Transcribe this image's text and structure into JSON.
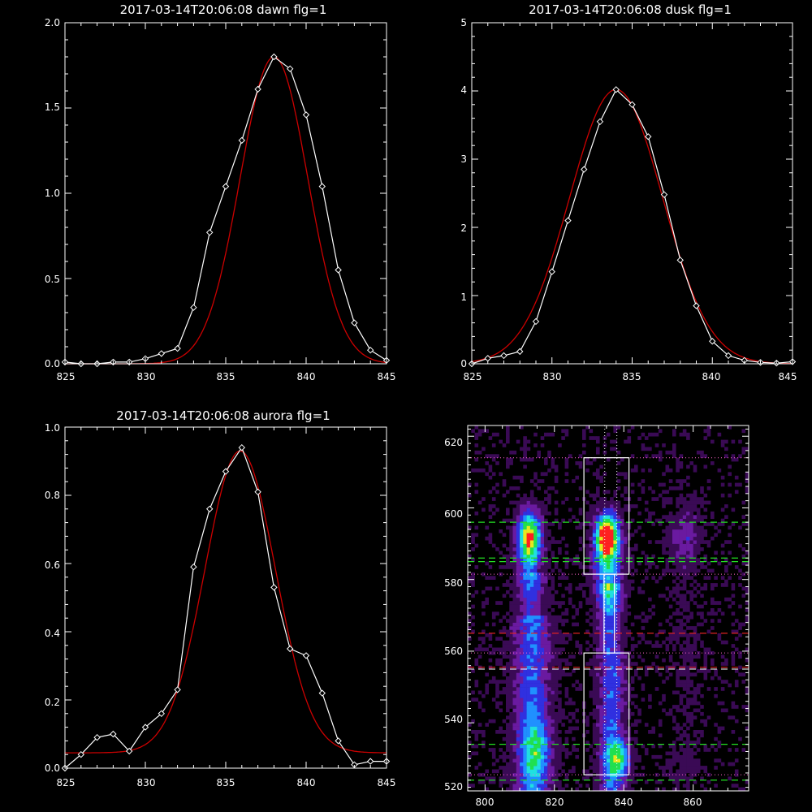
{
  "chart_data": [
    {
      "type": "line",
      "title": "2017-03-14T20:06:08 dawn flg=1",
      "xlim": [
        825,
        845
      ],
      "ylim": [
        0,
        2.0
      ],
      "xticks": [
        "825",
        "830",
        "835",
        "840",
        "845"
      ],
      "yticks": [
        "0.0",
        "0.5",
        "1.0",
        "1.5",
        "2.0"
      ],
      "x": [
        825,
        826,
        827,
        828,
        829,
        830,
        831,
        832,
        833,
        834,
        835,
        836,
        837,
        838,
        839,
        840,
        841,
        842,
        843,
        844,
        845
      ],
      "series": [
        {
          "values": [
            0.01,
            0.0,
            -0.01,
            0.01,
            0.01,
            0.03,
            0.06,
            0.09,
            0.33,
            0.77,
            1.04,
            1.31,
            1.61,
            1.8,
            1.73,
            1.46,
            1.04,
            0.55,
            0.24,
            0.08,
            0.02
          ],
          "color": "#ffffff",
          "marker": "diamond"
        },
        {
          "fit": "gaussian",
          "amp": 1.8,
          "center": 838.0,
          "sigma": 2.1,
          "base": 0.0,
          "color": "#cc0000"
        }
      ]
    },
    {
      "type": "line",
      "title": "2017-03-14T20:06:08 dusk flg=1",
      "xlim": [
        825,
        845
      ],
      "ylim": [
        0,
        5
      ],
      "xticks": [
        "825",
        "830",
        "835",
        "840",
        "845"
      ],
      "yticks": [
        "0",
        "1",
        "2",
        "3",
        "4",
        "5"
      ],
      "x": [
        825,
        826,
        827,
        828,
        829,
        830,
        831,
        832,
        833,
        834,
        835,
        836,
        837,
        838,
        839,
        840,
        841,
        842,
        843,
        844,
        845
      ],
      "series": [
        {
          "values": [
            0.0,
            0.08,
            0.12,
            0.18,
            0.62,
            1.35,
            2.1,
            2.85,
            3.55,
            4.02,
            3.8,
            3.33,
            2.48,
            1.52,
            0.85,
            0.33,
            0.12,
            0.05,
            0.02,
            0.01,
            0.03
          ],
          "color": "#ffffff",
          "marker": "diamond"
        },
        {
          "fit": "gaussian",
          "amp": 4.02,
          "center": 834.0,
          "sigma": 2.9,
          "base": 0.0,
          "color": "#cc0000"
        }
      ]
    },
    {
      "type": "line",
      "title": "2017-03-14T20:06:08 aurora flg=1",
      "xlim": [
        825,
        845
      ],
      "ylim": [
        0,
        1.0
      ],
      "xticks": [
        "825",
        "830",
        "835",
        "840",
        "845"
      ],
      "yticks": [
        "0.0",
        "0.2",
        "0.4",
        "0.6",
        "0.8",
        "1.0"
      ],
      "x": [
        825,
        826,
        827,
        828,
        829,
        830,
        831,
        832,
        833,
        834,
        835,
        836,
        837,
        838,
        839,
        840,
        841,
        842,
        843,
        844,
        845
      ],
      "series": [
        {
          "values": [
            0.0,
            0.04,
            0.09,
            0.1,
            0.05,
            0.12,
            0.16,
            0.23,
            0.59,
            0.76,
            0.87,
            0.94,
            0.81,
            0.53,
            0.35,
            0.33,
            0.22,
            0.08,
            0.01,
            0.02,
            0.02
          ],
          "color": "#ffffff",
          "marker": "diamond"
        },
        {
          "fit": "gaussian",
          "amp": 0.885,
          "center": 835.9,
          "sigma": 2.2,
          "base": 0.045,
          "color": "#cc0000"
        }
      ]
    },
    {
      "type": "heatmap",
      "xlim": [
        795,
        876
      ],
      "ylim": [
        521,
        623
      ],
      "xticks": [
        "800",
        "820",
        "840",
        "860"
      ],
      "yticks": [
        "520",
        "540",
        "560",
        "580",
        "600",
        "620"
      ],
      "colormap": [
        "#000000",
        "#3a0a55",
        "#6a1aa0",
        "#3030e0",
        "#2090ff",
        "#20e0e0",
        "#20e050",
        "#e8e820",
        "#ff2020"
      ],
      "boxes": [
        {
          "x0": 828.5,
          "x1": 841.5,
          "y0": 581.5,
          "y1": 614
        },
        {
          "x0": 828.5,
          "x1": 841.5,
          "y0": 525.5,
          "y1": 559.5
        }
      ],
      "vertical_lines": [
        834.5,
        838
      ],
      "dashed_green": [
        596,
        586,
        585,
        534,
        524
      ],
      "dashed_red": [
        565,
        555.5
      ],
      "dashed_white": [
        555
      ],
      "dotted_pink": [
        614,
        581.5,
        559.5,
        525.5
      ]
    }
  ]
}
